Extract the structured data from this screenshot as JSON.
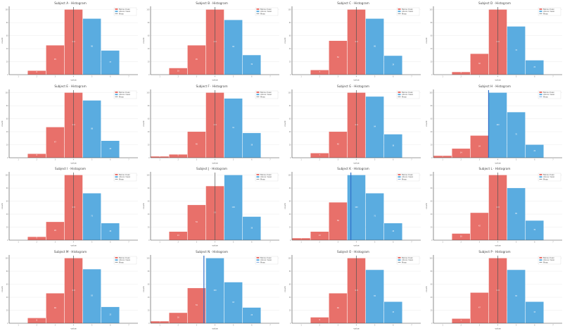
{
  "colors": {
    "red": "#e8706a",
    "blue": "#5aace0",
    "marker_red": "#555555",
    "marker_blue": "#3070c8",
    "grid": "#e6e6e6",
    "axis": "#444444"
  },
  "chart_data": [
    {
      "type": "bar",
      "title": "Subject A · Histogram",
      "xlabel": "value",
      "ylabel": "count",
      "categories": [
        "1",
        "2",
        "3",
        "4",
        "5",
        "6",
        "7"
      ],
      "values": [
        0,
        6,
        45,
        100,
        86,
        37,
        0
      ],
      "split_index": 4,
      "marker": 3.5,
      "marker_color": "red",
      "ylim": [
        0,
        105
      ],
      "legend": [
        "Below mean",
        "Above mean",
        "Mean"
      ]
    },
    {
      "type": "bar",
      "title": "Subject B · Histogram",
      "xlabel": "value",
      "ylabel": "count",
      "categories": [
        "1",
        "2",
        "3",
        "4",
        "5",
        "6",
        "7"
      ],
      "values": [
        0,
        10,
        45,
        100,
        84,
        30,
        0
      ],
      "split_index": 4,
      "marker": 3.5,
      "marker_color": "red",
      "ylim": [
        0,
        105
      ],
      "legend": [
        "Below mean",
        "Above mean",
        "Mean"
      ]
    },
    {
      "type": "bar",
      "title": "Subject C · Histogram",
      "xlabel": "value",
      "ylabel": "count",
      "categories": [
        "1",
        "2",
        "3",
        "4",
        "5",
        "6",
        "7"
      ],
      "values": [
        0,
        7,
        52,
        100,
        86,
        29,
        0
      ],
      "split_index": 4,
      "marker": 3.5,
      "marker_color": "red",
      "ylim": [
        0,
        105
      ],
      "legend": [
        "Below mean",
        "Above mean",
        "Mean"
      ]
    },
    {
      "type": "bar",
      "title": "Subject D · Histogram",
      "xlabel": "value",
      "ylabel": "count",
      "categories": [
        "1",
        "2",
        "3",
        "4",
        "5",
        "6",
        "7"
      ],
      "values": [
        0,
        4,
        32,
        100,
        74,
        22,
        0
      ],
      "split_index": 4,
      "marker": 3.5,
      "marker_color": "red",
      "ylim": [
        0,
        105
      ],
      "legend": [
        "Below mean",
        "Above mean",
        "Mean"
      ]
    },
    {
      "type": "bar",
      "title": "Subject E · Histogram",
      "xlabel": "value",
      "ylabel": "count",
      "categories": [
        "1",
        "2",
        "3",
        "4",
        "5",
        "6",
        "7"
      ],
      "values": [
        0,
        6,
        47,
        100,
        88,
        26,
        0
      ],
      "split_index": 4,
      "marker": 3.5,
      "marker_color": "red",
      "ylim": [
        0,
        105
      ],
      "legend": [
        "Below mean",
        "Above mean",
        "Mean"
      ]
    },
    {
      "type": "bar",
      "title": "Subject F · Histogram",
      "xlabel": "value",
      "ylabel": "count",
      "categories": [
        "1",
        "2",
        "3",
        "4",
        "5",
        "6",
        "7"
      ],
      "values": [
        2,
        5,
        40,
        100,
        91,
        38,
        0
      ],
      "split_index": 4,
      "marker": 3.5,
      "marker_color": "red",
      "ylim": [
        0,
        105
      ],
      "legend": [
        "Below mean",
        "Above mean",
        "Mean"
      ]
    },
    {
      "type": "bar",
      "title": "Subject G · Histogram",
      "xlabel": "value",
      "ylabel": "count",
      "categories": [
        "1",
        "2",
        "3",
        "4",
        "5",
        "6",
        "7"
      ],
      "values": [
        0,
        7,
        40,
        100,
        94,
        36,
        0
      ],
      "split_index": 4,
      "marker": 3.5,
      "marker_color": "red",
      "ylim": [
        0,
        105
      ],
      "legend": [
        "Below mean",
        "Above mean",
        "Mean"
      ]
    },
    {
      "type": "bar",
      "title": "Subject H · Histogram",
      "xlabel": "value",
      "ylabel": "count",
      "categories": [
        "1",
        "2",
        "3",
        "4",
        "5",
        "6",
        "7"
      ],
      "values": [
        3,
        14,
        34,
        100,
        70,
        20,
        0
      ],
      "split_index": 3,
      "marker": 3.0,
      "marker_color": "blue",
      "ylim": [
        0,
        105
      ],
      "legend": [
        "Below mean",
        "Above mean",
        "Mean"
      ]
    },
    {
      "type": "bar",
      "title": "Subject I · Histogram",
      "xlabel": "value",
      "ylabel": "count",
      "categories": [
        "1",
        "2",
        "3",
        "4",
        "5",
        "6",
        "7"
      ],
      "values": [
        0,
        5,
        28,
        100,
        72,
        26,
        0
      ],
      "split_index": 4,
      "marker": 3.5,
      "marker_color": "red",
      "ylim": [
        0,
        105
      ],
      "legend": [
        "Below mean",
        "Above mean",
        "Mean"
      ]
    },
    {
      "type": "bar",
      "title": "Subject J · Histogram",
      "xlabel": "value",
      "ylabel": "count",
      "categories": [
        "1",
        "2",
        "3",
        "4",
        "5",
        "6",
        "7"
      ],
      "values": [
        0,
        13,
        54,
        83,
        100,
        36,
        0
      ],
      "split_index": 4,
      "marker": 3.5,
      "marker_color": "red",
      "ylim": [
        0,
        105
      ],
      "legend": [
        "Below mean",
        "Above mean",
        "Mean"
      ]
    },
    {
      "type": "bar",
      "title": "Subject K · Histogram",
      "xlabel": "value",
      "ylabel": "count",
      "categories": [
        "1",
        "2",
        "3",
        "4",
        "5",
        "6",
        "7"
      ],
      "values": [
        3,
        13,
        58,
        100,
        72,
        26,
        0
      ],
      "split_index": 3,
      "marker": 3.2,
      "marker_color": "blue",
      "ylim": [
        0,
        105
      ],
      "legend": [
        "Below mean",
        "Above mean",
        "Mean"
      ]
    },
    {
      "type": "bar",
      "title": "Subject L · Histogram",
      "xlabel": "value",
      "ylabel": "count",
      "categories": [
        "1",
        "2",
        "3",
        "4",
        "5",
        "6",
        "7"
      ],
      "values": [
        0,
        10,
        42,
        100,
        80,
        30,
        0
      ],
      "split_index": 4,
      "marker": 3.5,
      "marker_color": "red",
      "ylim": [
        0,
        105
      ],
      "legend": [
        "Below mean",
        "Above mean",
        "Mean"
      ]
    },
    {
      "type": "bar",
      "title": "Subject M · Histogram",
      "xlabel": "value",
      "ylabel": "count",
      "categories": [
        "1",
        "2",
        "3",
        "4",
        "5",
        "6",
        "7"
      ],
      "values": [
        0,
        8,
        46,
        100,
        83,
        25,
        0
      ],
      "split_index": 4,
      "marker": 3.5,
      "marker_color": "red",
      "ylim": [
        0,
        105
      ],
      "legend": [
        "Below mean",
        "Above mean",
        "Mean"
      ]
    },
    {
      "type": "bar",
      "title": "Subject N · Histogram",
      "xlabel": "value",
      "ylabel": "count",
      "categories": [
        "1",
        "2",
        "3",
        "4",
        "5",
        "6",
        "7"
      ],
      "values": [
        3,
        16,
        54,
        100,
        63,
        24,
        0
      ],
      "split_index": 3,
      "marker": 2.9,
      "marker_color": "blue",
      "ylim": [
        0,
        105
      ],
      "legend": [
        "Below mean",
        "Above mean",
        "Mean"
      ]
    },
    {
      "type": "bar",
      "title": "Subject O · Histogram",
      "xlabel": "value",
      "ylabel": "count",
      "categories": [
        "1",
        "2",
        "3",
        "4",
        "5",
        "6",
        "7"
      ],
      "values": [
        0,
        9,
        46,
        100,
        82,
        33,
        0
      ],
      "split_index": 4,
      "marker": 3.5,
      "marker_color": "red",
      "ylim": [
        0,
        105
      ],
      "legend": [
        "Below mean",
        "Above mean",
        "Mean"
      ]
    },
    {
      "type": "bar",
      "title": "Subject P · Histogram",
      "xlabel": "value",
      "ylabel": "count",
      "categories": [
        "1",
        "2",
        "3",
        "4",
        "5",
        "6",
        "7"
      ],
      "values": [
        0,
        7,
        47,
        100,
        82,
        33,
        0
      ],
      "split_index": 4,
      "marker": 3.5,
      "marker_color": "red",
      "ylim": [
        0,
        105
      ],
      "legend": [
        "Below mean",
        "Above mean",
        "Mean"
      ]
    }
  ]
}
